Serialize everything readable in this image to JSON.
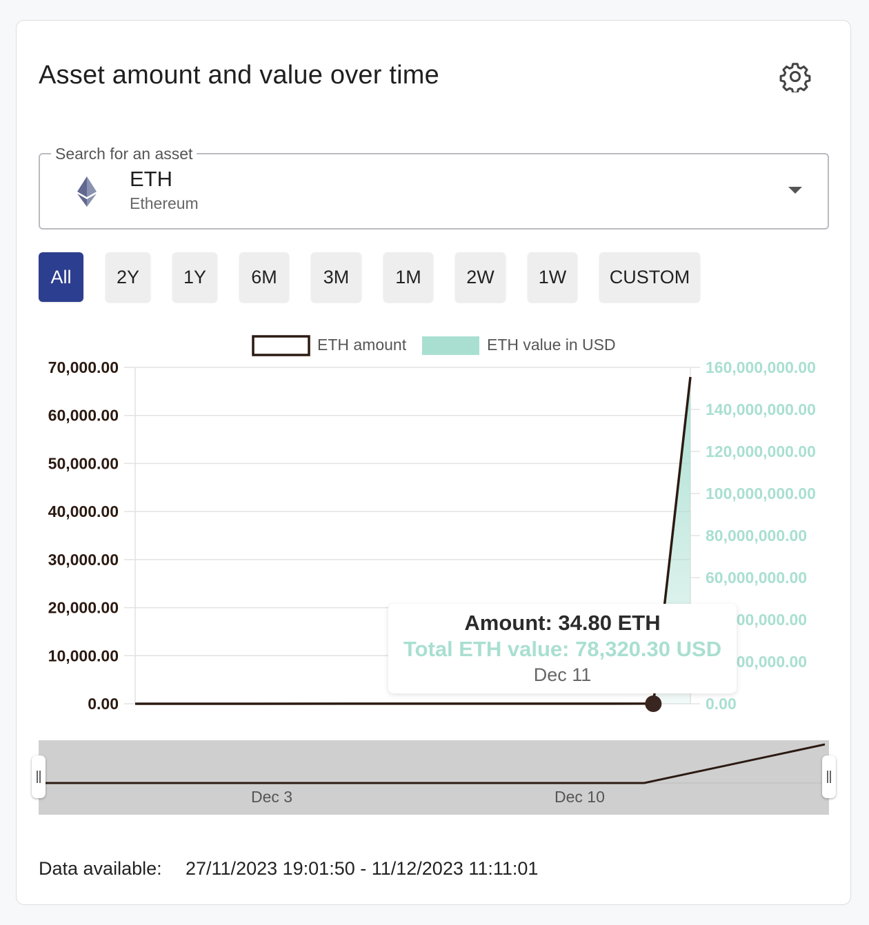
{
  "title": "Asset amount and value over time",
  "icons": {
    "settings": "gear-icon",
    "asset": "ethereum-logo-icon",
    "dropdown": "chevron-down-icon"
  },
  "asset_select": {
    "label": "Search for an asset",
    "symbol": "ETH",
    "name": "Ethereum"
  },
  "ranges": [
    {
      "label": "All",
      "active": true
    },
    {
      "label": "2Y",
      "active": false
    },
    {
      "label": "1Y",
      "active": false
    },
    {
      "label": "6M",
      "active": false
    },
    {
      "label": "3M",
      "active": false
    },
    {
      "label": "1M",
      "active": false
    },
    {
      "label": "2W",
      "active": false
    },
    {
      "label": "1W",
      "active": false
    },
    {
      "label": "CUSTOM",
      "active": false
    }
  ],
  "colors": {
    "accent": "#2c3e8f",
    "amount": "#2b1a12",
    "usd": "#a9dfd1",
    "grid": "#e2e2e2"
  },
  "chart_data": {
    "type": "line",
    "legend": [
      "ETH amount",
      "ETH value in USD"
    ],
    "legend_position": "top-center",
    "grid": true,
    "y_left": {
      "ticks": [
        "70,000.00",
        "60,000.00",
        "50,000.00",
        "40,000.00",
        "30,000.00",
        "20,000.00",
        "10,000.00",
        "0.00"
      ],
      "range": [
        0,
        70000
      ]
    },
    "y_right": {
      "ticks": [
        "160,000,000.00",
        "140,000,000.00",
        "120,000,000.00",
        "100,000,000.00",
        "80,000,000.00",
        "60,000,000.00",
        "40,000,000.00",
        "20,000,000.00",
        "0.00"
      ],
      "range": [
        0,
        160000000
      ]
    },
    "x_range": [
      "2023-11-27",
      "2023-12-12"
    ],
    "series": [
      {
        "name": "ETH amount",
        "axis": "left",
        "points": [
          [
            "2023-11-27",
            0
          ],
          [
            "2023-12-11",
            34.8
          ],
          [
            "2023-12-12",
            68000
          ]
        ]
      },
      {
        "name": "ETH value in USD",
        "axis": "right",
        "points": [
          [
            "2023-11-27",
            0
          ],
          [
            "2023-12-11",
            78320.3
          ],
          [
            "2023-12-12",
            150000000
          ]
        ]
      }
    ],
    "highlight": {
      "date": "2023-12-11"
    }
  },
  "tooltip": {
    "amount": "Amount: 34.80 ETH",
    "value": "Total ETH value: 78,320.30 USD",
    "date": "Dec 11"
  },
  "navigator": {
    "labels": [
      "Dec 3",
      "Dec 10"
    ]
  },
  "footer": {
    "label": "Data available:",
    "range": "27/11/2023 19:01:50 - 11/12/2023 11:11:01"
  }
}
